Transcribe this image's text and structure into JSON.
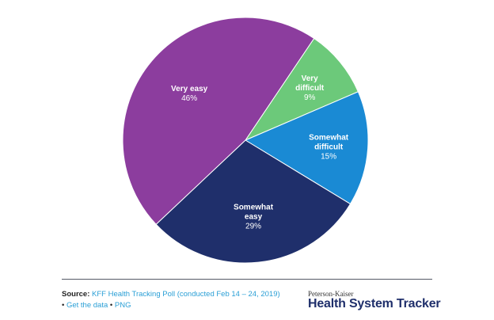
{
  "chart_data": {
    "type": "pie",
    "title": "",
    "slices": [
      {
        "label": "Very difficult",
        "value": 9,
        "display": "9%",
        "color": "#6cc97a"
      },
      {
        "label": "Somewhat difficult",
        "value": 15,
        "display": "15%",
        "color": "#1a8ad4"
      },
      {
        "label": "Somewhat easy",
        "value": 29,
        "display": "29%",
        "color": "#1f2f6b"
      },
      {
        "label": "Very easy",
        "value": 46,
        "display": "46%",
        "color": "#8c3d9e"
      }
    ]
  },
  "footer": {
    "source_label": "Source:",
    "source_link": "KFF Health Tracking Poll (conducted Feb 14 – 24, 2019)",
    "bullet": "•",
    "get_data": "Get the data",
    "png": "PNG",
    "logo_small": "Peterson-Kaiser",
    "logo_main": "Health System Tracker"
  }
}
